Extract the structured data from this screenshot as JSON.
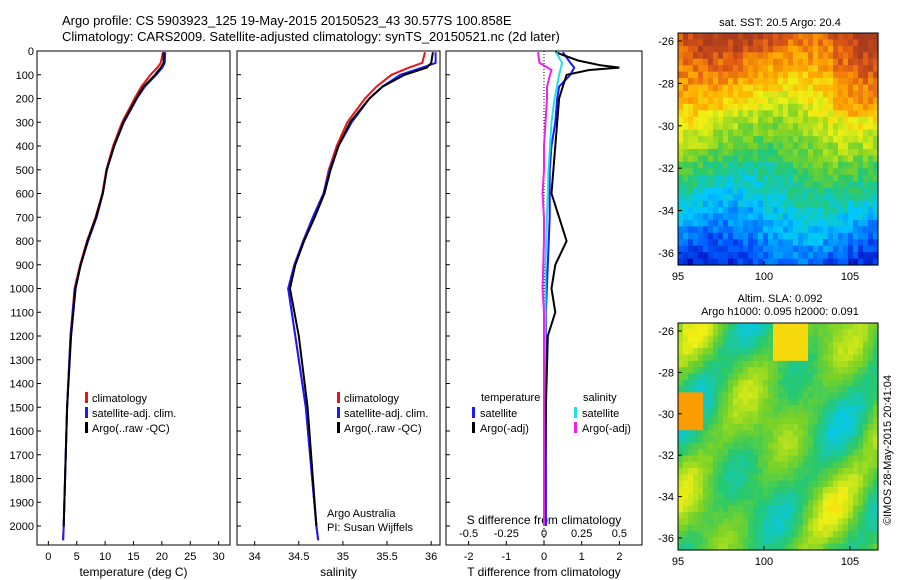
{
  "header": {
    "line1": "Argo profile: CS 5903923_125 19-May-2015 20150523_43 30.577S 100.858E",
    "line2": "Climatology: CARS2009. Satellite-adjusted climatology: synTS_20150521.nc (2d later)"
  },
  "maps": {
    "sst_title": "sat. SST: 20.5 Argo: 20.4",
    "sla_title1": "Altim. SLA: 0.092",
    "sla_title2": "Argo h1000: 0.095 h2000: 0.091",
    "stamp": "©IMOS 28-May-2015 20:41:04",
    "lat_ticks": [
      "-26",
      "-28",
      "-30",
      "-32",
      "-34",
      "-36"
    ],
    "lon_ticks": [
      "95",
      "100",
      "105"
    ]
  },
  "annotations": {
    "argo_australia": "Argo Australia",
    "pi": "PI: Susan Wijffels"
  },
  "colors": {
    "climatology": "#e8141c",
    "satellite": "#1a1aff",
    "argo": "#000000",
    "sal_satellite": "#22e0e8",
    "sal_argo": "#ee22ee"
  },
  "chart_data": [
    {
      "type": "line",
      "name": "temperature",
      "xlabel": "temperature (deg C)",
      "ylabel": "",
      "xlim": [
        -2,
        32
      ],
      "ylim": [
        2080,
        0
      ],
      "xticks": [
        "0",
        "5",
        "10",
        "15",
        "20",
        "25",
        "30"
      ],
      "yticks": [
        "0",
        "100",
        "200",
        "300",
        "400",
        "500",
        "600",
        "700",
        "800",
        "900",
        "1000",
        "1100",
        "1200",
        "1300",
        "1400",
        "1500",
        "1600",
        "1700",
        "1800",
        "1900",
        "2000"
      ],
      "legend": [
        "climatology",
        "satellite-adj. clim.",
        "Argo(..raw -QC)"
      ],
      "legend_position": "lower-middle",
      "series": [
        {
          "name": "climatology",
          "depth": [
            5,
            50,
            70,
            100,
            150,
            200,
            300,
            400,
            500,
            600,
            700,
            800,
            900,
            1000,
            1200,
            1500,
            2000,
            2060
          ],
          "values": [
            20.2,
            19.8,
            19.2,
            18.0,
            16.4,
            15.2,
            13.0,
            11.4,
            10.2,
            9.5,
            8.3,
            6.8,
            5.6,
            4.6,
            3.9,
            3.3,
            2.7,
            2.6
          ]
        },
        {
          "name": "satellite-adj. clim.",
          "depth": [
            5,
            50,
            70,
            100,
            150,
            200,
            300,
            400,
            500,
            600,
            700,
            800,
            900,
            1000,
            1200,
            1500,
            2000,
            2060
          ],
          "values": [
            20.6,
            20.5,
            20.1,
            19.0,
            17.0,
            15.6,
            13.3,
            11.6,
            10.3,
            9.6,
            8.5,
            7.0,
            5.7,
            4.7,
            3.9,
            3.3,
            2.7,
            2.6
          ]
        },
        {
          "name": "Argo(..raw -QC)",
          "depth": [
            5,
            50,
            70,
            100,
            150,
            200,
            300,
            400,
            500,
            600,
            700,
            800,
            900,
            1000,
            1200,
            1500,
            2000
          ],
          "values": [
            20.3,
            20.3,
            19.8,
            18.8,
            16.8,
            15.5,
            13.2,
            11.6,
            10.3,
            9.6,
            8.4,
            6.9,
            5.7,
            4.8,
            4.0,
            3.3,
            2.7
          ]
        }
      ]
    },
    {
      "type": "line",
      "name": "salinity",
      "xlabel": "salinity",
      "ylabel": "",
      "xlim": [
        33.8,
        36.1
      ],
      "ylim": [
        2080,
        0
      ],
      "xticks": [
        "34",
        "34.5",
        "35",
        "35.5",
        "36"
      ],
      "legend": [
        "climatology",
        "satellite-adj. clim.",
        "Argo(..raw -QC)"
      ],
      "legend_position": "lower-middle",
      "series": [
        {
          "name": "climatology",
          "depth": [
            5,
            50,
            70,
            100,
            150,
            200,
            300,
            400,
            500,
            600,
            700,
            800,
            900,
            1000,
            1200,
            1500,
            2000,
            2060
          ],
          "values": [
            35.93,
            35.9,
            35.75,
            35.55,
            35.38,
            35.25,
            35.05,
            34.93,
            34.84,
            34.78,
            34.66,
            34.55,
            34.45,
            34.38,
            34.46,
            34.58,
            34.7,
            34.72
          ]
        },
        {
          "name": "satellite-adj. clim.",
          "depth": [
            5,
            50,
            70,
            100,
            150,
            200,
            300,
            400,
            500,
            600,
            700,
            800,
            900,
            1000,
            1200,
            1500,
            2000,
            2060
          ],
          "values": [
            36.05,
            36.05,
            35.9,
            35.65,
            35.45,
            35.3,
            35.1,
            34.95,
            34.85,
            34.78,
            34.66,
            34.55,
            34.45,
            34.38,
            34.46,
            34.58,
            34.7,
            34.72
          ]
        },
        {
          "name": "Argo(..raw -QC)",
          "depth": [
            5,
            50,
            70,
            100,
            150,
            200,
            300,
            400,
            500,
            600,
            700,
            800,
            900,
            1000,
            1100,
            1200,
            1500,
            2000
          ],
          "values": [
            36.02,
            36.0,
            35.95,
            35.7,
            35.45,
            35.3,
            35.08,
            34.95,
            34.86,
            34.79,
            34.68,
            34.56,
            34.46,
            34.4,
            34.45,
            34.5,
            34.6,
            34.7
          ]
        }
      ]
    },
    {
      "type": "line",
      "name": "differences",
      "xlabel": "T difference from climatology",
      "xlabel_top": "S difference from climatology",
      "xlim": [
        -2.6,
        2.6
      ],
      "ylim": [
        2080,
        0
      ],
      "xticks": [
        "-2",
        "-1",
        "0",
        "1",
        "2"
      ],
      "xticks_top": [
        "-0.5",
        "-0.25",
        "0",
        "0.25",
        "0.5"
      ],
      "legend_groups": [
        "temperature",
        "salinity"
      ],
      "legend": [
        "satellite",
        "Argo(-adj)",
        "satellite",
        "Argo(-adj)"
      ],
      "legend_position": "lower-middle",
      "series": [
        {
          "name": "satellite",
          "depth": [
            5,
            50,
            70,
            100,
            150,
            200,
            300,
            400,
            500,
            700,
            900,
            1100,
            1300,
            1600,
            2000
          ],
          "values": [
            0.5,
            0.7,
            0.8,
            0.7,
            0.4,
            0.35,
            0.3,
            0.2,
            0.15,
            0.15,
            0.1,
            0.05,
            0.05,
            0.05,
            0.05
          ]
        },
        {
          "name": "Argo(-adj)",
          "depth": [
            5,
            40,
            60,
            70,
            80,
            100,
            150,
            200,
            300,
            400,
            500,
            600,
            700,
            800,
            900,
            1000,
            1100,
            1200,
            1500,
            2000
          ],
          "values": [
            0.3,
            0.9,
            1.5,
            2.0,
            1.2,
            0.6,
            0.5,
            0.4,
            0.35,
            0.3,
            0.25,
            0.2,
            0.4,
            0.6,
            0.3,
            0.2,
            0.3,
            0.1,
            0.05,
            0.0
          ]
        },
        {
          "name": "satellite",
          "depth": [
            5,
            50,
            100,
            200,
            300,
            400,
            500,
            700,
            900,
            1100,
            1500,
            2000
          ],
          "values": [
            0.08,
            0.12,
            0.1,
            0.07,
            0.05,
            0.04,
            0.03,
            0.02,
            0.01,
            0.01,
            0.0,
            0.0
          ]
        },
        {
          "name": "Argo(-adj)",
          "depth": [
            5,
            50,
            80,
            100,
            150,
            200,
            300,
            400,
            500,
            600,
            700,
            800,
            1000,
            1100,
            1500,
            2000
          ],
          "values": [
            -0.04,
            -0.03,
            0.05,
            0.04,
            0.02,
            0.02,
            0.01,
            0.0,
            0.0,
            -0.01,
            0.0,
            0.0,
            -0.01,
            0.0,
            0.0,
            0.0
          ]
        }
      ]
    }
  ]
}
